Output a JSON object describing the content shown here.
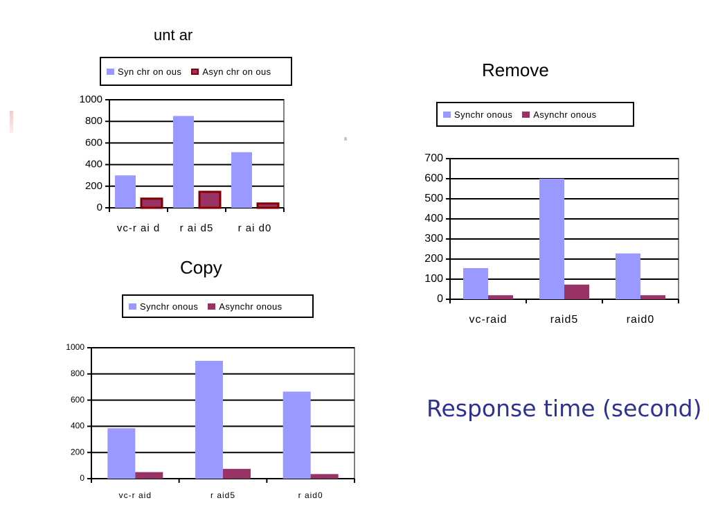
{
  "caption": "Response time (second)",
  "colors": {
    "synchronous": "#9999ff",
    "asynchronous": "#993366",
    "async_untar": "#993366",
    "async_untar_border": "#800000"
  },
  "chart_data": [
    {
      "type": "bar",
      "title": "unt ar",
      "categories": [
        "vc-r ai d",
        "r ai d5",
        "r ai d0"
      ],
      "ylim": [
        0,
        1000
      ],
      "yticks": [
        0,
        200,
        400,
        600,
        800,
        1000
      ],
      "legend": [
        "Syn chr on ous",
        "Asyn chr on ous"
      ],
      "legend_position": "top",
      "grid": true,
      "series": [
        {
          "name": "Syn chr on ous",
          "values": [
            300,
            850,
            515
          ]
        },
        {
          "name": "Asyn chr on ous",
          "values": [
            85,
            148,
            40
          ]
        }
      ]
    },
    {
      "type": "bar",
      "title": "Remove",
      "categories": [
        "vc-raid",
        "raid5",
        "raid0"
      ],
      "ylim": [
        0,
        700
      ],
      "yticks": [
        0,
        100,
        200,
        300,
        400,
        500,
        600,
        700
      ],
      "legend": [
        "Synchr onous",
        "Asynchr onous"
      ],
      "legend_position": "top",
      "grid": true,
      "series": [
        {
          "name": "Synchr onous",
          "values": [
            155,
            600,
            228
          ]
        },
        {
          "name": "Asynchr onous",
          "values": [
            20,
            73,
            20
          ]
        }
      ]
    },
    {
      "type": "bar",
      "title": "Copy",
      "categories": [
        "vc-r aid",
        "r aid5",
        "r aid0"
      ],
      "ylim": [
        0,
        1000
      ],
      "yticks": [
        0,
        200,
        400,
        600,
        800,
        1000
      ],
      "legend": [
        "Synchr onous",
        "Asynchr onous"
      ],
      "legend_position": "top",
      "grid": true,
      "series": [
        {
          "name": "Synchr onous",
          "values": [
            385,
            900,
            665
          ]
        },
        {
          "name": "Asynchr onous",
          "values": [
            50,
            75,
            35
          ]
        }
      ]
    }
  ]
}
